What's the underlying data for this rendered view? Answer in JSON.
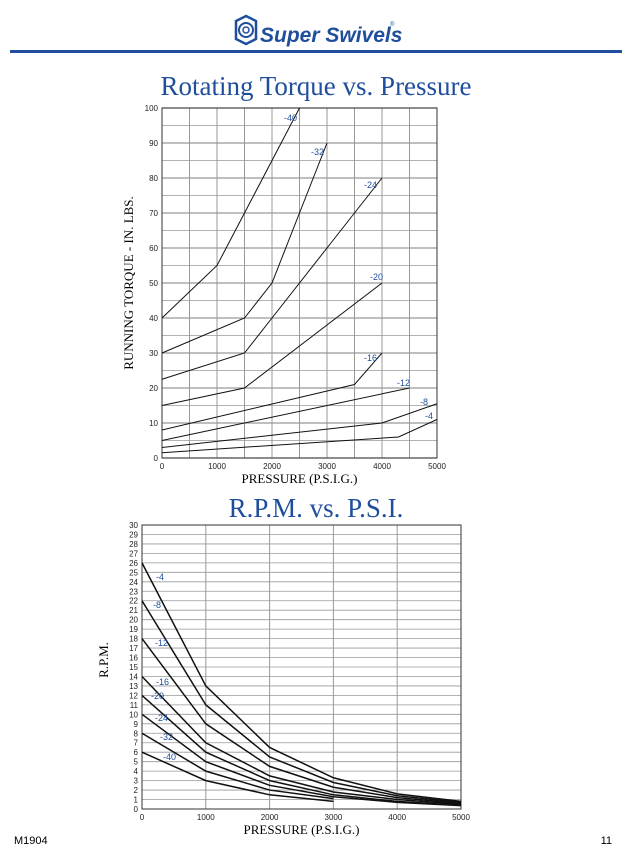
{
  "header": {
    "brand": "Super Swivels",
    "brand_color": "#1f4e9c"
  },
  "footer": {
    "doc_code": "M1904",
    "page_number": "11"
  },
  "chart_data": [
    {
      "type": "line",
      "title": "Rotating Torque vs. Pressure",
      "xlabel": "PRESSURE (P.S.I.G.)",
      "ylabel": "RUNNING TORQUE - IN. LBS.",
      "xlim": [
        0,
        5000
      ],
      "ylim": [
        0,
        100
      ],
      "xticks": [
        "0",
        "1000",
        "2000",
        "3000",
        "4000",
        "5000"
      ],
      "yticks": [
        "0",
        "10",
        "20",
        "30",
        "40",
        "50",
        "60",
        "70",
        "80",
        "90",
        "100"
      ],
      "grid": true,
      "series": [
        {
          "name": "-40",
          "points": [
            [
              0,
              40
            ],
            [
              1000,
              55
            ],
            [
              1500,
              70
            ],
            [
              2000,
              85
            ],
            [
              2500,
              100
            ]
          ]
        },
        {
          "name": "-32",
          "points": [
            [
              0,
              30
            ],
            [
              1500,
              40
            ],
            [
              2000,
              50
            ],
            [
              2500,
              70
            ],
            [
              3000,
              90
            ]
          ]
        },
        {
          "name": "-24",
          "points": [
            [
              0,
              22.5
            ],
            [
              1500,
              30
            ],
            [
              2000,
              40
            ],
            [
              3000,
              60
            ],
            [
              4000,
              80
            ]
          ]
        },
        {
          "name": "-20",
          "points": [
            [
              0,
              15
            ],
            [
              1500,
              20
            ],
            [
              4000,
              50
            ]
          ]
        },
        {
          "name": "-16",
          "points": [
            [
              0,
              8
            ],
            [
              3500,
              21
            ],
            [
              4000,
              30
            ]
          ]
        },
        {
          "name": "-12",
          "points": [
            [
              0,
              5
            ],
            [
              4500,
              20
            ]
          ]
        },
        {
          "name": "-8",
          "points": [
            [
              0,
              3
            ],
            [
              4000,
              10
            ],
            [
              5000,
              15.5
            ]
          ]
        },
        {
          "name": "-4",
          "points": [
            [
              0,
              1.5
            ],
            [
              4300,
              6
            ],
            [
              5000,
              11
            ]
          ]
        }
      ]
    },
    {
      "type": "line",
      "title": "R.P.M. vs. P.S.I.",
      "xlabel": "PRESSURE (P.S.I.G.)",
      "ylabel": "R.P.M.",
      "xlim": [
        0,
        5000
      ],
      "ylim": [
        0,
        30
      ],
      "xticks": [
        "0",
        "1000",
        "2000",
        "3000",
        "4000",
        "5000"
      ],
      "yticks": [
        "0",
        "1",
        "2",
        "3",
        "4",
        "5",
        "6",
        "7",
        "8",
        "9",
        "10",
        "11",
        "12",
        "13",
        "14",
        "15",
        "16",
        "17",
        "18",
        "19",
        "20",
        "21",
        "22",
        "23",
        "24",
        "25",
        "26",
        "27",
        "28",
        "29",
        "30"
      ],
      "grid": true,
      "series": [
        {
          "name": "-4",
          "points": [
            [
              0,
              26
            ],
            [
              1000,
              13
            ],
            [
              2000,
              6.5
            ],
            [
              3000,
              3.3
            ],
            [
              4000,
              1.6
            ],
            [
              5000,
              0.8
            ]
          ]
        },
        {
          "name": "-8",
          "points": [
            [
              0,
              22
            ],
            [
              1000,
              11
            ],
            [
              2000,
              5.5
            ],
            [
              3000,
              2.8
            ],
            [
              4000,
              1.4
            ],
            [
              5000,
              0.7
            ]
          ]
        },
        {
          "name": "-12",
          "points": [
            [
              0,
              18
            ],
            [
              1000,
              9
            ],
            [
              2000,
              4.5
            ],
            [
              3000,
              2.3
            ],
            [
              4000,
              1.2
            ],
            [
              5000,
              0.6
            ]
          ]
        },
        {
          "name": "-16",
          "points": [
            [
              0,
              14
            ],
            [
              1000,
              7
            ],
            [
              2000,
              3.5
            ],
            [
              3000,
              1.8
            ],
            [
              4000,
              1.0
            ],
            [
              5000,
              0.5
            ]
          ]
        },
        {
          "name": "-20",
          "points": [
            [
              0,
              12
            ],
            [
              1000,
              6
            ],
            [
              2000,
              3
            ],
            [
              3000,
              1.5
            ],
            [
              4000,
              0.8
            ],
            [
              5000,
              0.4
            ]
          ]
        },
        {
          "name": "-24",
          "points": [
            [
              0,
              10
            ],
            [
              1000,
              5
            ],
            [
              2000,
              2.5
            ],
            [
              3000,
              1.3
            ],
            [
              4000,
              0.7
            ],
            [
              5000,
              0.35
            ]
          ]
        },
        {
          "name": "-32",
          "points": [
            [
              0,
              8
            ],
            [
              1000,
              4
            ],
            [
              2000,
              2
            ],
            [
              3000,
              1.1
            ]
          ]
        },
        {
          "name": "-40",
          "points": [
            [
              0,
              6
            ],
            [
              1000,
              3
            ],
            [
              2000,
              1.5
            ],
            [
              3000,
              0.8
            ]
          ]
        }
      ]
    }
  ]
}
